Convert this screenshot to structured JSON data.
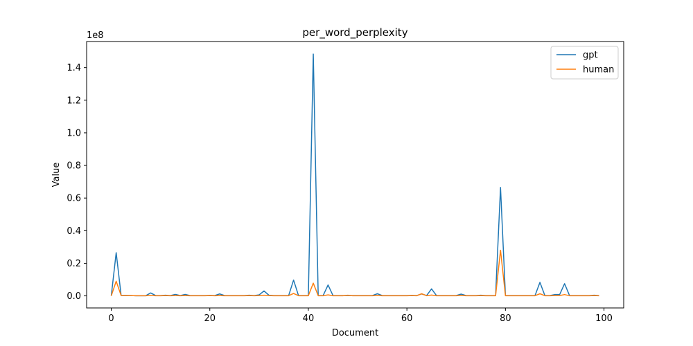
{
  "chart_data": {
    "type": "line",
    "title": "per_word_perplexity",
    "xlabel": "Document",
    "ylabel": "Value",
    "y_offset_text": "1e8",
    "xlim": [
      -5,
      104
    ],
    "ylim": [
      -0.074,
      1.56
    ],
    "x_ticks": [
      0,
      20,
      40,
      60,
      80,
      100
    ],
    "x_tick_labels": [
      "0",
      "20",
      "40",
      "60",
      "80",
      "100"
    ],
    "y_ticks": [
      0.0,
      0.2,
      0.4,
      0.6,
      0.8,
      1.0,
      1.2,
      1.4
    ],
    "y_tick_labels": [
      "0.0",
      "0.2",
      "0.4",
      "0.6",
      "0.8",
      "1.0",
      "1.2",
      "1.4"
    ],
    "grid": false,
    "legend_position": "top-right",
    "x": [
      0,
      1,
      2,
      3,
      4,
      5,
      6,
      7,
      8,
      9,
      10,
      11,
      12,
      13,
      14,
      15,
      16,
      17,
      18,
      19,
      20,
      21,
      22,
      23,
      24,
      25,
      26,
      27,
      28,
      29,
      30,
      31,
      32,
      33,
      34,
      35,
      36,
      37,
      38,
      39,
      40,
      41,
      42,
      43,
      44,
      45,
      46,
      47,
      48,
      49,
      50,
      51,
      52,
      53,
      54,
      55,
      56,
      57,
      58,
      59,
      60,
      61,
      62,
      63,
      64,
      65,
      66,
      67,
      68,
      69,
      70,
      71,
      72,
      73,
      74,
      75,
      76,
      77,
      78,
      79,
      80,
      81,
      82,
      83,
      84,
      85,
      86,
      87,
      88,
      89,
      90,
      91,
      92,
      93,
      94,
      95,
      96,
      97,
      98,
      99
    ],
    "series": [
      {
        "name": "gpt",
        "color": "#1f77b4",
        "values": [
          0.0,
          0.265,
          0.003,
          0.003,
          0.002,
          0.001,
          0.001,
          0.001,
          0.018,
          0.002,
          0.002,
          0.004,
          0.002,
          0.009,
          0.002,
          0.009,
          0.002,
          0.002,
          0.002,
          0.002,
          0.003,
          0.002,
          0.012,
          0.002,
          0.002,
          0.002,
          0.002,
          0.002,
          0.004,
          0.002,
          0.006,
          0.03,
          0.004,
          0.002,
          0.002,
          0.002,
          0.002,
          0.097,
          0.002,
          0.002,
          0.002,
          1.483,
          0.002,
          0.002,
          0.067,
          0.002,
          0.002,
          0.002,
          0.002,
          0.002,
          0.002,
          0.002,
          0.002,
          0.002,
          0.013,
          0.002,
          0.002,
          0.002,
          0.002,
          0.002,
          0.002,
          0.003,
          0.002,
          0.012,
          0.002,
          0.043,
          0.002,
          0.002,
          0.002,
          0.002,
          0.002,
          0.011,
          0.002,
          0.002,
          0.002,
          0.004,
          0.002,
          0.002,
          0.002,
          0.665,
          0.002,
          0.002,
          0.002,
          0.002,
          0.002,
          0.002,
          0.002,
          0.083,
          0.002,
          0.002,
          0.008,
          0.008,
          0.075,
          0.002,
          0.002,
          0.002,
          0.002,
          0.002,
          0.004,
          0.002
        ]
      },
      {
        "name": "human",
        "color": "#ff7f0e",
        "values": [
          0.0,
          0.09,
          0.002,
          0.002,
          0.002,
          0.001,
          0.001,
          0.001,
          0.003,
          0.001,
          0.001,
          0.002,
          0.001,
          0.002,
          0.001,
          0.002,
          0.001,
          0.001,
          0.001,
          0.001,
          0.002,
          0.001,
          0.002,
          0.001,
          0.001,
          0.001,
          0.001,
          0.001,
          0.002,
          0.001,
          0.002,
          0.004,
          0.002,
          0.001,
          0.001,
          0.001,
          0.001,
          0.015,
          0.001,
          0.001,
          0.001,
          0.078,
          0.001,
          0.001,
          0.006,
          0.001,
          0.001,
          0.001,
          0.004,
          0.001,
          0.001,
          0.001,
          0.001,
          0.001,
          0.003,
          0.001,
          0.001,
          0.001,
          0.001,
          0.001,
          0.001,
          0.002,
          0.001,
          0.013,
          0.001,
          0.005,
          0.001,
          0.001,
          0.001,
          0.001,
          0.001,
          0.003,
          0.001,
          0.001,
          0.001,
          0.002,
          0.001,
          0.001,
          0.001,
          0.28,
          0.001,
          0.001,
          0.001,
          0.001,
          0.001,
          0.001,
          0.001,
          0.013,
          0.001,
          0.001,
          0.002,
          0.002,
          0.008,
          0.001,
          0.001,
          0.001,
          0.001,
          0.001,
          0.002,
          0.001
        ]
      }
    ]
  }
}
